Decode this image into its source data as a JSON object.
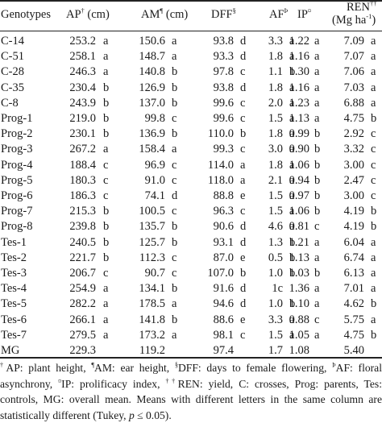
{
  "headers": {
    "genotypes": "Genotypes",
    "ap": "AP",
    "ap_sup": "†",
    "ap_unit": " (cm)",
    "am": "AM",
    "am_sup": "¶",
    "am_unit": " (cm)",
    "dff": "DFF",
    "dff_sup": "§",
    "af": "AF",
    "af_sup": "Þ",
    "ip": "IP",
    "ip_sup": "¤",
    "ren": "REN",
    "ren_sup": "††",
    "ren_unit_a": "(Mg ha",
    "ren_unit_sup": "-1",
    "ren_unit_b": ")"
  },
  "rows": [
    {
      "g": "C-14",
      "ap": "253.2",
      "apl": "a",
      "am": "150.6",
      "aml": "a",
      "dff": "93.8",
      "dffl": "d",
      "af": "3.3",
      "afl": "a",
      "ip": "1.22",
      "ipl": "a",
      "ren": "7.09",
      "renl": "a"
    },
    {
      "g": "C-51",
      "ap": "258.1",
      "apl": "a",
      "am": "148.7",
      "aml": "a",
      "dff": "93.3",
      "dffl": "d",
      "af": "1.8",
      "afl": "a",
      "ip": "1.16",
      "ipl": "a",
      "ren": "7.07",
      "renl": "a"
    },
    {
      "g": "C-28",
      "ap": "246.3",
      "apl": "a",
      "am": "140.8",
      "aml": "b",
      "dff": "97.8",
      "dffl": "c",
      "af": "1.1",
      "afl": "b",
      "ip": "1.30",
      "ipl": "a",
      "ren": "7.06",
      "renl": "a"
    },
    {
      "g": "C-35",
      "ap": "230.4",
      "apl": "b",
      "am": "126.9",
      "aml": "b",
      "dff": "93.8",
      "dffl": "d",
      "af": "1.8",
      "afl": "a",
      "ip": "1.16",
      "ipl": "a",
      "ren": "7.03",
      "renl": "a"
    },
    {
      "g": "C-8",
      "ap": "243.9",
      "apl": "b",
      "am": "137.0",
      "aml": "b",
      "dff": "99.6",
      "dffl": "c",
      "af": "2.0",
      "afl": "a",
      "ip": "1.23",
      "ipl": "a",
      "ren": "6.88",
      "renl": "a"
    },
    {
      "g": "Prog-1",
      "ap": "219.0",
      "apl": "b",
      "am": "99.8",
      "aml": "c",
      "dff": "99.6",
      "dffl": "c",
      "af": "1.5",
      "afl": "a",
      "ip": "1.13",
      "ipl": "a",
      "ren": "4.75",
      "renl": "b"
    },
    {
      "g": "Prog-2",
      "ap": "230.1",
      "apl": "b",
      "am": "136.9",
      "aml": "b",
      "dff": "110.0",
      "dffl": "b",
      "af": "1.8",
      "afl": "a",
      "ip": "0.99",
      "ipl": "b",
      "ren": "2.92",
      "renl": "c"
    },
    {
      "g": "Prog-3",
      "ap": "267.2",
      "apl": "a",
      "am": "158.4",
      "aml": "a",
      "dff": "99.3",
      "dffl": "c",
      "af": "3.0",
      "afl": "a",
      "ip": "0.90",
      "ipl": "b",
      "ren": "3.32",
      "renl": "c"
    },
    {
      "g": "Prog-4",
      "ap": "188.4",
      "apl": "c",
      "am": "96.9",
      "aml": "c",
      "dff": "114.0",
      "dffl": "a",
      "af": "1.8",
      "afl": "a",
      "ip": "1.06",
      "ipl": "b",
      "ren": "3.00",
      "renl": "c"
    },
    {
      "g": "Prog-5",
      "ap": "180.3",
      "apl": "c",
      "am": "91.0",
      "aml": "c",
      "dff": "118.0",
      "dffl": "a",
      "af": "2.1",
      "afl": "a",
      "ip": "0.94",
      "ipl": "b",
      "ren": "2.47",
      "renl": "c"
    },
    {
      "g": "Prog-6",
      "ap": "186.3",
      "apl": "c",
      "am": "74.1",
      "aml": "d",
      "dff": "88.8",
      "dffl": "e",
      "af": "1.5",
      "afl": "a",
      "ip": "0.97",
      "ipl": "b",
      "ren": "3.00",
      "renl": "c"
    },
    {
      "g": "Prog-7",
      "ap": "215.3",
      "apl": "b",
      "am": "100.5",
      "aml": "c",
      "dff": "96.3",
      "dffl": "c",
      "af": "1.5",
      "afl": "a",
      "ip": "1.06",
      "ipl": "b",
      "ren": "4.19",
      "renl": "b"
    },
    {
      "g": "Prog-8",
      "ap": "239.8",
      "apl": "b",
      "am": "135.7",
      "aml": "b",
      "dff": "90.6",
      "dffl": "d",
      "af": "4.6",
      "afl": "a",
      "ip": "0.81",
      "ipl": "c",
      "ren": "4.19",
      "renl": "b"
    },
    {
      "g": "Tes-1",
      "ap": "240.5",
      "apl": "b",
      "am": "125.7",
      "aml": "b",
      "dff": "93.1",
      "dffl": "d",
      "af": "1.3",
      "afl": "b",
      "ip": "1.21",
      "ipl": "a",
      "ren": "6.04",
      "renl": "a"
    },
    {
      "g": "Tes-2",
      "ap": "221.7",
      "apl": "b",
      "am": "112.3",
      "aml": "c",
      "dff": "87.0",
      "dffl": "e",
      "af": "0.5",
      "afl": "b",
      "ip": "1.13",
      "ipl": "a",
      "ren": "6.74",
      "renl": "a"
    },
    {
      "g": "Tes-3",
      "ap": "206.7",
      "apl": "c",
      "am": "90.7",
      "aml": "c",
      "dff": "107.0",
      "dffl": "b",
      "af": "1.0",
      "afl": "b",
      "ip": "1.03",
      "ipl": "b",
      "ren": "6.13",
      "renl": "a"
    },
    {
      "g": "Tes-4",
      "ap": "254.9",
      "apl": "a",
      "am": "134.1",
      "aml": "b",
      "dff": "91.6",
      "dffl": "d",
      "af": "1c",
      "afl": "",
      "ip": "1.36",
      "ipl": "a",
      "ren": "7.01",
      "renl": "a"
    },
    {
      "g": "Tes-5",
      "ap": "282.2",
      "apl": "a",
      "am": "178.5",
      "aml": "a",
      "dff": "94.6",
      "dffl": "d",
      "af": "1.0",
      "afl": "b",
      "ip": "1.10",
      "ipl": "a",
      "ren": "4.62",
      "renl": "b"
    },
    {
      "g": "Tes-6",
      "ap": "266.1",
      "apl": "a",
      "am": "141.8",
      "aml": "b",
      "dff": "88.6",
      "dffl": "e",
      "af": "3.3",
      "afl": "a",
      "ip": "0.88",
      "ipl": "c",
      "ren": "5.75",
      "renl": "a"
    },
    {
      "g": "Tes-7",
      "ap": "279.5",
      "apl": "a",
      "am": "173.2",
      "aml": "a",
      "dff": "98.1",
      "dffl": "c",
      "af": "1.5",
      "afl": "a",
      "ip": "1.05",
      "ipl": "a",
      "ren": "4.75",
      "renl": "b"
    },
    {
      "g": "MG",
      "ap": "229.3",
      "apl": "",
      "am": "119.2",
      "aml": "",
      "dff": "97.4",
      "dffl": "",
      "af": "1.7",
      "afl": "",
      "ip": "1.08",
      "ipl": "",
      "ren": "5.40",
      "renl": ""
    }
  ],
  "footnote": {
    "s1": "†",
    "t1": "AP: plant height, ",
    "s2": "¶",
    "t2": "AM: ear height, ",
    "s3": "§",
    "t3": "DFF: days to female flowering, ",
    "s4": "Þ",
    "t4": "AF: floral asynchrony, ",
    "s5": "¤",
    "t5": "IP: prolificacy index, ",
    "s6": "††",
    "t6": "REN: yield, C: crosses, Prog: parents, Tes: controls, MG: overall mean. Means with different letters in the same column are statistically different (Tukey, ",
    "p_italic": "p",
    "t7": " ≤ 0.05)."
  }
}
